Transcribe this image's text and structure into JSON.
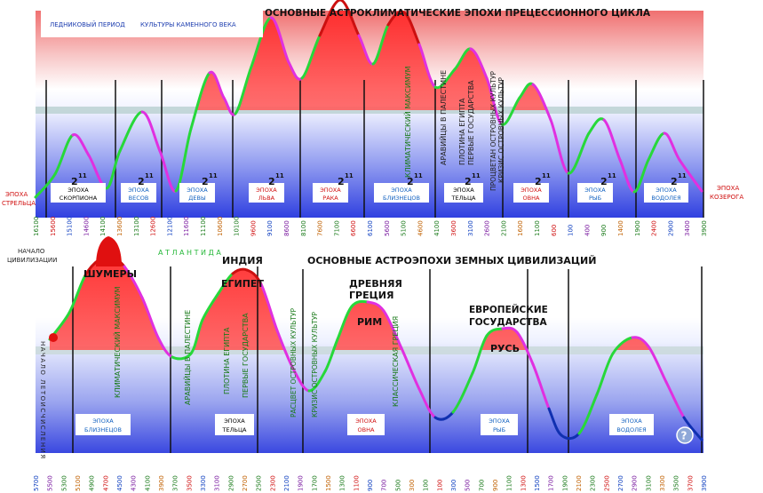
{
  "top_panel": {
    "title": "ОСНОВНЫЕ АСТРОКЛИМАТИЧЕСКИЕ ЭПОХИ ПРЕЦЕССИОННОГО ЦИКЛА",
    "legend_glacial": "ЛЕДНИКОВЫЙ ПЕРИОД",
    "legend_stone": "КУЛЬТУРЫ КАМЕННОГО ВЕКА",
    "side_left": [
      "ЭПОХА",
      "СТРЕЛЬЦА"
    ],
    "side_right": [
      "ЭПОХА",
      "КОЗЕРОГА"
    ],
    "power_label": "2",
    "power_exp": "11",
    "epochs": [
      {
        "line1": "ЭПОХА",
        "line2": "СКОРПИОНА",
        "color": "#000000"
      },
      {
        "line1": "ЭПОХА",
        "line2": "ВЕСОВ",
        "color": "#1060c0"
      },
      {
        "line1": "ЭПОХА",
        "line2": "ДЕВЫ",
        "color": "#1060c0"
      },
      {
        "line1": "ЭПОХА",
        "line2": "ЛЬВА",
        "color": "#d01010"
      },
      {
        "line1": "ЭПОХА",
        "line2": "РАКА",
        "color": "#d01010"
      },
      {
        "line1": "ЭПОХА",
        "line2": "БЛИЗНЕЦОВ",
        "color": "#1060c0"
      },
      {
        "line1": "ЭПОХА",
        "line2": "ТЕЛЬЦА",
        "color": "#000000"
      },
      {
        "line1": "ЭПОХА",
        "line2": "ОВНА",
        "color": "#d01010"
      },
      {
        "line1": "ЭПОХА",
        "line2": "РЫБ",
        "color": "#1060c0"
      },
      {
        "line1": "ЭПОХА",
        "line2": "ВОДОЛЕЯ",
        "color": "#1060c0"
      }
    ],
    "vertical_annotations": [
      "КЛИМАТИЧЕСКИЙ МАКСИМУМ",
      "АРАВИЙЦЫ В ПАЛЕСТИНЕ",
      "ПЛОТИНА ЕГИПТА",
      "ПЕРВЫЕ ГОСУДАРСТВА",
      "ПРОЦВЕТАН ОСТРОВНЫХ КУЛЬТУР",
      "КРИЗИС ОСТРОВНЫХ КУЛЬТУР"
    ],
    "axis_ticks": [
      "16100",
      "15600",
      "15100",
      "14600",
      "14100",
      "13600",
      "13100",
      "12600",
      "12100",
      "11600",
      "11100",
      "10600",
      "10100",
      "9600",
      "9100",
      "8600",
      "8100",
      "7600",
      "7100",
      "6600",
      "6100",
      "5600",
      "5100",
      "4600",
      "4100",
      "3600",
      "3100",
      "2600",
      "2100",
      "1600",
      "1100",
      "600",
      "100",
      "400",
      "900",
      "1400",
      "1900",
      "2400",
      "2900",
      "3400",
      "3900"
    ]
  },
  "bottom_panel": {
    "title": "ОСНОВНЫЕ АСТРОЭПОХИ ЗЕМНЫХ ЦИВИЛИЗАЦИЙ",
    "start_label": [
      "НАЧАЛО",
      "ЦИВИЛИЗАЦИИ"
    ],
    "atlantis": "А Т Л А Н Т И Д А",
    "side_vertical": "НАЧАЛО ЛЕТОИСЧИСЛЕНИЯ",
    "civilizations": [
      "ШУМЕРЫ",
      "ИНДИЯ",
      "ЕГИПЕТ",
      "ДРЕВНЯЯ",
      "ГРЕЦИЯ",
      "РИМ",
      "ЕВРОПЕЙСКИЕ",
      "ГОСУДАРСТВА",
      "РУСЬ"
    ],
    "vertical_annotations": [
      "КЛИМАТИЧЕСКИЙ МАКСИМУМ",
      "АРАВИЙЦЫ В ПАЛЕСТИНЕ",
      "ПЛОТИНА ЕГИПТА",
      "ПЕРВЫЕ ГОСУДАРСТВА",
      "РАСЦВЕТ ОСТРОВНЫХ КУЛЬТУР",
      "КРИЗИС ОСТРОВНЫХ КУЛЬТУР",
      "КЛАССИЧЕСКАЯ ГРЕЦИЯ"
    ],
    "epochs": [
      {
        "line1": "ЭПОХА",
        "line2": "БЛИЗНЕЦОВ",
        "color": "#1060c0"
      },
      {
        "line1": "ЭПОХА",
        "line2": "ТЕЛЬЦА",
        "color": "#000000"
      },
      {
        "line1": "ЭПОХА",
        "line2": "ОВНА",
        "color": "#d01010"
      },
      {
        "line1": "ЭПОХА",
        "line2": "РЫБ",
        "color": "#1060c0"
      },
      {
        "line1": "ЭПОХА",
        "line2": "ВОДОЛЕЯ",
        "color": "#1060c0"
      }
    ],
    "axis_ticks": [
      "5700",
      "5500",
      "5300",
      "5100",
      "4900",
      "4700",
      "4500",
      "4300",
      "4100",
      "3900",
      "3700",
      "3500",
      "3300",
      "3100",
      "2900",
      "2700",
      "2500",
      "2300",
      "2100",
      "1900",
      "1700",
      "1500",
      "1300",
      "1100",
      "900",
      "700",
      "500",
      "300",
      "100",
      "100",
      "300",
      "500",
      "700",
      "900",
      "1100",
      "1300",
      "1500",
      "1700",
      "1900",
      "2100",
      "2300",
      "2500",
      "2700",
      "2900",
      "3100",
      "3300",
      "3500",
      "3700",
      "3900"
    ],
    "help_icon_glyph": "?"
  },
  "colors": {
    "warm": "#e84848",
    "cold": "#2a3ad8",
    "curve_green": "#27d83a",
    "curve_red": "#cc1010",
    "curve_magenta": "#e030e0",
    "curve_blue": "#1030b0",
    "grid_band": "#b8d0d0"
  },
  "icons": {
    "help": "help-circle-icon",
    "start_marker": "red-dot-icon"
  }
}
